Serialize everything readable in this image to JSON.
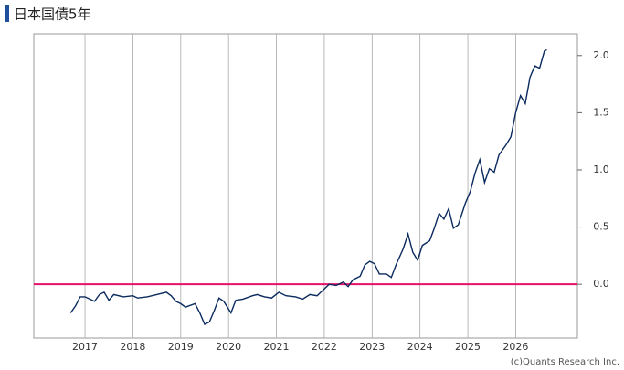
{
  "chart_data": {
    "type": "line",
    "title": "日本国債5年",
    "credit": "(c)Quants Research Inc.",
    "x": [
      2016.7,
      2016.8,
      2016.9,
      2017.0,
      2017.1,
      2017.2,
      2017.3,
      2017.4,
      2017.5,
      2017.6,
      2017.8,
      2018.0,
      2018.1,
      2018.3,
      2018.5,
      2018.7,
      2018.8,
      2018.9,
      2019.0,
      2019.1,
      2019.3,
      2019.4,
      2019.5,
      2019.6,
      2019.7,
      2019.8,
      2019.9,
      2020.05,
      2020.15,
      2020.3,
      2020.5,
      2020.6,
      2020.75,
      2020.9,
      2021.05,
      2021.2,
      2021.4,
      2021.55,
      2021.7,
      2021.85,
      2022.0,
      2022.1,
      2022.25,
      2022.4,
      2022.5,
      2022.6,
      2022.75,
      2022.85,
      2022.95,
      2023.05,
      2023.15,
      2023.3,
      2023.4,
      2023.5,
      2023.65,
      2023.75,
      2023.85,
      2023.95,
      2024.05,
      2024.2,
      2024.3,
      2024.4,
      2024.5,
      2024.6,
      2024.7,
      2024.8,
      2024.95,
      2025.05,
      2025.15,
      2025.25,
      2025.35,
      2025.45,
      2025.55,
      2025.65,
      2025.8,
      2025.9,
      2026.0,
      2026.1,
      2026.2,
      2026.3,
      2026.4,
      2026.5,
      2026.6,
      2026.65
    ],
    "series": [
      {
        "name": "日本国債5年",
        "color": "#0a2a5e",
        "values": [
          -0.25,
          -0.19,
          -0.11,
          -0.11,
          -0.13,
          -0.15,
          -0.09,
          -0.07,
          -0.14,
          -0.09,
          -0.11,
          -0.1,
          -0.12,
          -0.11,
          -0.09,
          -0.07,
          -0.1,
          -0.15,
          -0.17,
          -0.2,
          -0.17,
          -0.25,
          -0.35,
          -0.33,
          -0.23,
          -0.12,
          -0.15,
          -0.25,
          -0.14,
          -0.13,
          -0.1,
          -0.09,
          -0.11,
          -0.12,
          -0.07,
          -0.1,
          -0.11,
          -0.13,
          -0.09,
          -0.1,
          -0.04,
          0.0,
          -0.01,
          0.02,
          -0.02,
          0.04,
          0.07,
          0.17,
          0.2,
          0.18,
          0.09,
          0.09,
          0.06,
          0.17,
          0.31,
          0.44,
          0.28,
          0.21,
          0.34,
          0.38,
          0.49,
          0.62,
          0.57,
          0.66,
          0.49,
          0.52,
          0.71,
          0.81,
          0.97,
          1.09,
          0.89,
          1.01,
          0.98,
          1.13,
          1.22,
          1.29,
          1.5,
          1.65,
          1.58,
          1.81,
          1.91,
          1.89,
          2.04,
          2.05
        ]
      }
    ],
    "xlim": [
      2015.93,
      2027.29
    ],
    "xticks": [
      2017,
      2018,
      2019,
      2020,
      2021,
      2022,
      2023,
      2024,
      2025,
      2026
    ],
    "ylim": [
      -0.47,
      2.19
    ],
    "yticks": [
      {
        "value": 0,
        "label": "0.0"
      },
      0.5,
      {
        "value": 1,
        "label": "1.0"
      },
      1.5,
      {
        "value": 2,
        "label": "2.0"
      }
    ],
    "reference_line": 0,
    "reference_color": "#e8106a",
    "grid": true
  }
}
